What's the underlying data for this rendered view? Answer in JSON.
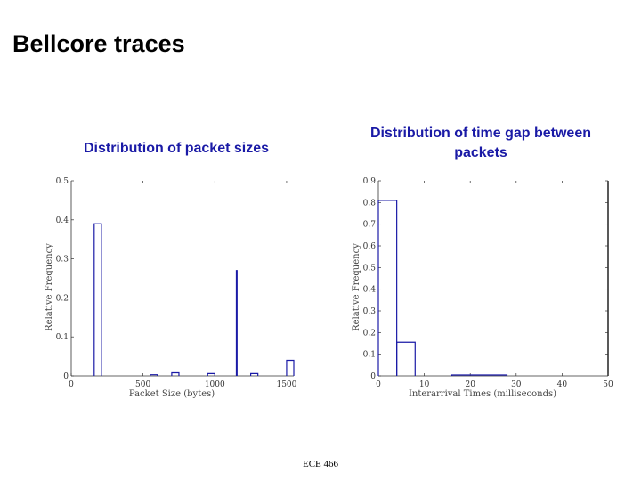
{
  "slide": {
    "title": "Bellcore traces",
    "footer": "ECE 466"
  },
  "chart_data": [
    {
      "type": "bar",
      "title": "Distribution of packet sizes",
      "xlabel": "Packet Size (bytes)",
      "ylabel": "Relative Frequency",
      "xlim": [
        0,
        1550
      ],
      "ylim": [
        0,
        0.5
      ],
      "xticks": [
        0,
        500,
        1000,
        1500
      ],
      "yticks": [
        0,
        0.1,
        0.2,
        0.3,
        0.4,
        0.5
      ],
      "grid": false,
      "bars": [
        {
          "x0": 160,
          "x1": 210,
          "value": 0.39
        },
        {
          "x0": 550,
          "x1": 600,
          "value": 0.003
        },
        {
          "x0": 700,
          "x1": 750,
          "value": 0.008
        },
        {
          "x0": 950,
          "x1": 1000,
          "value": 0.006
        },
        {
          "x0": 1150,
          "x1": 1155,
          "value": 0.27
        },
        {
          "x0": 1250,
          "x1": 1300,
          "value": 0.006
        },
        {
          "x0": 1500,
          "x1": 1550,
          "value": 0.04
        }
      ]
    },
    {
      "type": "bar",
      "title": "Distribution of time gap between packets",
      "xlabel": "Interarrival Times (milliseconds)",
      "ylabel": "Relative Frequency",
      "xlim": [
        0,
        50
      ],
      "ylim": [
        0,
        0.9
      ],
      "xticks": [
        0,
        10,
        20,
        30,
        40,
        50
      ],
      "yticks": [
        0,
        0.1,
        0.2,
        0.3,
        0.4,
        0.5,
        0.6,
        0.7,
        0.8,
        0.9
      ],
      "grid": false,
      "bars": [
        {
          "x0": 0,
          "x1": 4,
          "value": 0.81
        },
        {
          "x0": 4,
          "x1": 8,
          "value": 0.155
        },
        {
          "x0": 16,
          "x1": 28,
          "value": 0.004
        }
      ]
    }
  ]
}
